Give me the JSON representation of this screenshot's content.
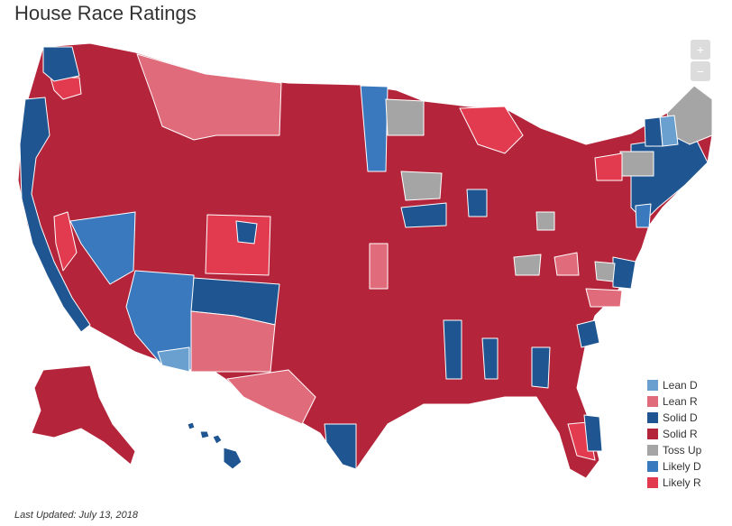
{
  "title": "House Race Ratings",
  "zoom": {
    "in_label": "+",
    "out_label": "−"
  },
  "colors": {
    "solid_r": "#b4243a",
    "lean_r": "#e06b7b",
    "likely_r": "#e23a4f",
    "solid_d": "#1f5591",
    "likely_d": "#3b79be",
    "lean_d": "#6aa0cf",
    "toss_up": "#a5a5a5"
  },
  "legend": [
    {
      "label": "Lean D",
      "color": "#6aa0cf"
    },
    {
      "label": "Lean R",
      "color": "#e06b7b"
    },
    {
      "label": "Solid D",
      "color": "#1f5591"
    },
    {
      "label": "Solid R",
      "color": "#b4243a"
    },
    {
      "label": "Toss Up",
      "color": "#a5a5a5"
    },
    {
      "label": "Likely D",
      "color": "#3b79be"
    },
    {
      "label": "Likely R",
      "color": "#e23a4f"
    }
  ],
  "last_updated": "Last Updated: July 13, 2018"
}
